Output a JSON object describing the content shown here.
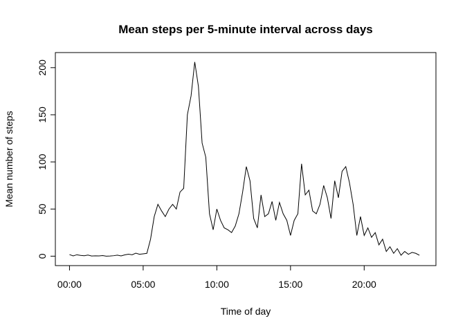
{
  "chart_data": {
    "type": "line",
    "title": "Mean steps per 5-minute interval across days",
    "xlabel": "Time of day",
    "ylabel": "Mean number of steps",
    "x": [
      0,
      0.25,
      0.5,
      0.75,
      1,
      1.25,
      1.5,
      1.75,
      2,
      2.25,
      2.5,
      2.75,
      3,
      3.25,
      3.5,
      3.75,
      4,
      4.25,
      4.5,
      4.75,
      5,
      5.25,
      5.5,
      5.75,
      6,
      6.25,
      6.5,
      6.75,
      7,
      7.25,
      7.5,
      7.75,
      8,
      8.25,
      8.5,
      8.75,
      9,
      9.25,
      9.5,
      9.75,
      10,
      10.25,
      10.5,
      10.75,
      11,
      11.25,
      11.5,
      11.75,
      12,
      12.25,
      12.5,
      12.75,
      13,
      13.25,
      13.5,
      13.75,
      14,
      14.25,
      14.5,
      14.75,
      15,
      15.25,
      15.5,
      15.75,
      16,
      16.25,
      16.5,
      16.75,
      17,
      17.25,
      17.5,
      17.75,
      18,
      18.25,
      18.5,
      18.75,
      19,
      19.25,
      19.5,
      19.75,
      20,
      20.25,
      20.5,
      20.75,
      21,
      21.25,
      21.5,
      21.75,
      22,
      22.25,
      22.5,
      22.75,
      23,
      23.25,
      23.5,
      23.75
    ],
    "series": [
      {
        "name": "Mean steps",
        "color": "#000000",
        "values": [
          1.7,
          0.3,
          1.5,
          0.8,
          0.5,
          1.2,
          0.2,
          0.4,
          0.3,
          0.6,
          0,
          0.2,
          0.5,
          1.1,
          0.3,
          1.4,
          2.1,
          1.5,
          3.2,
          2.0,
          2.5,
          3.0,
          18,
          42,
          55,
          48,
          42,
          50,
          55,
          50,
          68,
          72,
          150,
          170,
          206,
          180,
          120,
          105,
          45,
          28,
          50,
          38,
          30,
          28,
          25,
          32,
          45,
          68,
          95,
          80,
          40,
          30,
          65,
          42,
          45,
          58,
          38,
          57,
          45,
          38,
          22,
          38,
          45,
          98,
          65,
          70,
          48,
          45,
          55,
          75,
          62,
          40,
          80,
          62,
          90,
          95,
          78,
          55,
          22,
          42,
          22,
          30,
          20,
          25,
          12,
          18,
          5,
          10,
          3,
          8,
          1,
          5,
          2,
          4,
          3,
          1
        ]
      }
    ],
    "xlim": [
      -0.96,
      24.87
    ],
    "ylim": [
      -10,
      216
    ],
    "xticks": [
      {
        "value": 0,
        "label": "00:00"
      },
      {
        "value": 5,
        "label": "05:00"
      },
      {
        "value": 10,
        "label": "10:00"
      },
      {
        "value": 15,
        "label": "15:00"
      },
      {
        "value": 20,
        "label": "20:00"
      }
    ],
    "yticks": [
      0,
      50,
      100,
      150,
      200
    ]
  }
}
